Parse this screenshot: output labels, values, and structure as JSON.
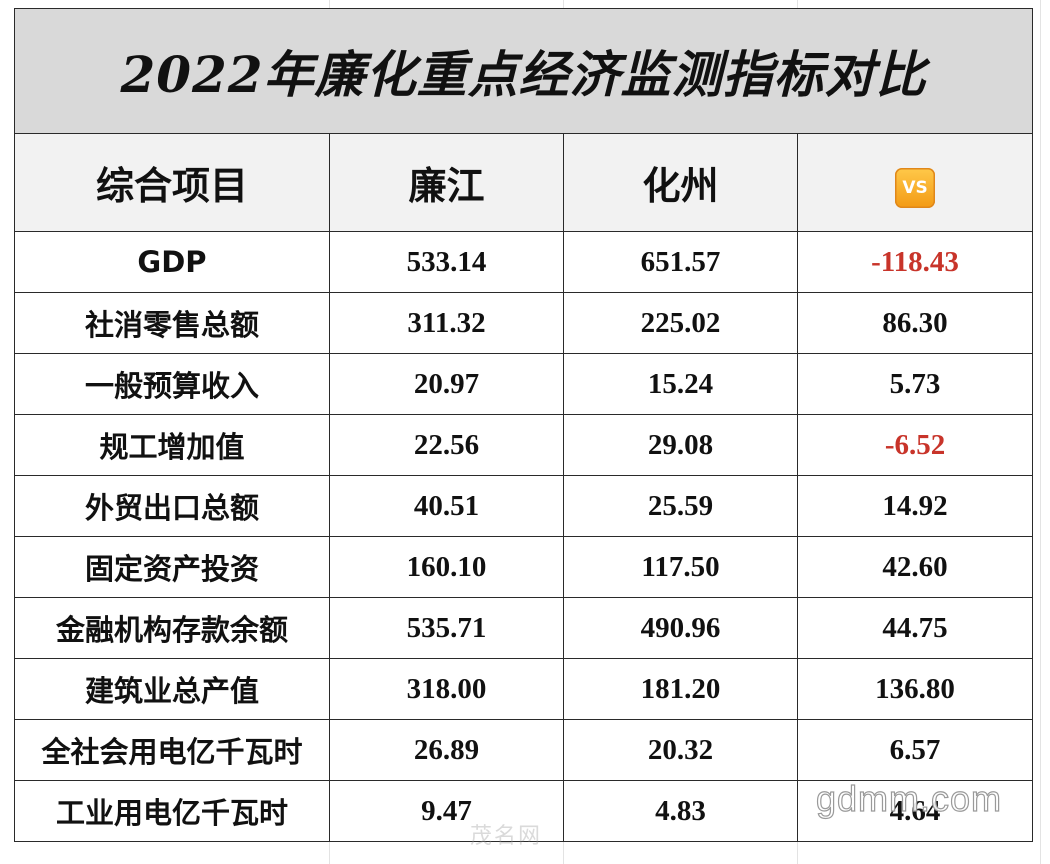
{
  "title": "2022年廉化重点经济监测指标对比",
  "headers": {
    "item": "综合项目",
    "lianjiang": "廉江",
    "huazhou": "化州",
    "vs": "VS"
  },
  "rows": [
    {
      "label": "GDP",
      "lianjiang": "533.14",
      "huazhou": "651.57",
      "diff": "-118.43",
      "negative": true
    },
    {
      "label": "社消零售总额",
      "lianjiang": "311.32",
      "huazhou": "225.02",
      "diff": "86.30",
      "negative": false
    },
    {
      "label": "一般预算收入",
      "lianjiang": "20.97",
      "huazhou": "15.24",
      "diff": "5.73",
      "negative": false
    },
    {
      "label": "规工增加值",
      "lianjiang": "22.56",
      "huazhou": "29.08",
      "diff": "-6.52",
      "negative": true
    },
    {
      "label": "外贸出口总额",
      "lianjiang": "40.51",
      "huazhou": "25.59",
      "diff": "14.92",
      "negative": false
    },
    {
      "label": "固定资产投资",
      "lianjiang": "160.10",
      "huazhou": "117.50",
      "diff": "42.60",
      "negative": false
    },
    {
      "label": "金融机构存款余额",
      "lianjiang": "535.71",
      "huazhou": "490.96",
      "diff": "44.75",
      "negative": false
    },
    {
      "label": "建筑业总产值",
      "lianjiang": "318.00",
      "huazhou": "181.20",
      "diff": "136.80",
      "negative": false
    },
    {
      "label": "全社会用电亿千瓦时",
      "lianjiang": "26.89",
      "huazhou": "20.32",
      "diff": "6.57",
      "negative": false
    },
    {
      "label": "工业用电亿千瓦时",
      "lianjiang": "9.47",
      "huazhou": "4.83",
      "diff": "4.64",
      "negative": false
    }
  ],
  "colors": {
    "negative": "#c8342a",
    "title_bg": "#d9d9d9",
    "header_bg": "#f2f2f2",
    "vs_badge": "#f5a623"
  },
  "watermark": {
    "main": "gdmm.com",
    "small": "茂名网"
  }
}
